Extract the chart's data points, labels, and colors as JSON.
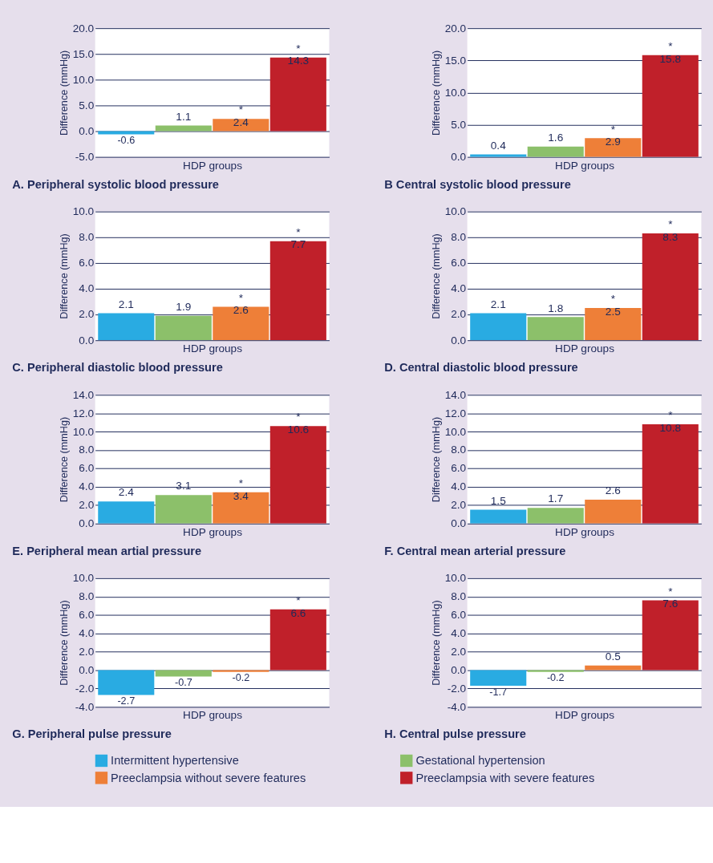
{
  "chart_data": [
    {
      "type": "bar",
      "title": "A. Peripheral systolic blood pressure",
      "xlabel": "HDP groups",
      "ylabel": "Difference (mmHg)",
      "categories": [
        null
      ],
      "legend": "bottom",
      "grid": "y",
      "ylim": [
        -5,
        20
      ],
      "yticks": [
        {
          "value": -5,
          "label": "-5.0"
        },
        {
          "value": 0,
          "label": "0.0"
        },
        {
          "value": 5,
          "label": "5.0"
        },
        {
          "value": 10,
          "label": "10.0"
        },
        {
          "value": 15,
          "label": "15.0"
        },
        {
          "value": 20,
          "label": "20.0"
        }
      ],
      "series": [
        {
          "name": "Intermittent hypertensive",
          "color": "#29abe2",
          "values": [
            -0.6
          ],
          "value_labels": [
            "-0.6"
          ]
        },
        {
          "name": "Gestational hypertension",
          "color": "#8cc06a",
          "values": [
            1.1
          ],
          "value_labels": [
            "1.1"
          ]
        },
        {
          "name": "Preeclampsia without severe features",
          "color": "#ee7f38",
          "values": [
            2.4
          ],
          "value_labels": [
            "*\n2.4"
          ]
        },
        {
          "name": "Preeclampsia with severe features",
          "color": "#c0202a",
          "values": [
            14.3
          ],
          "value_labels": [
            "*\n14.3"
          ]
        }
      ]
    },
    {
      "type": "bar",
      "title": "B  Central systolic blood pressure",
      "xlabel": "HDP groups",
      "ylabel": "Difference (mmHg)",
      "categories": [
        null
      ],
      "grid": "y",
      "ylim": [
        0,
        20
      ],
      "yticks": [
        {
          "value": 0,
          "label": "0.0"
        },
        {
          "value": 5,
          "label": "5.0"
        },
        {
          "value": 10,
          "label": "10.0"
        },
        {
          "value": 15,
          "label": "15.0"
        },
        {
          "value": 20,
          "label": "20.0"
        }
      ],
      "series": [
        {
          "name": "Intermittent hypertensive",
          "color": "#29abe2",
          "values": [
            0.4
          ],
          "value_labels": [
            "0.4"
          ]
        },
        {
          "name": "Gestational hypertension",
          "color": "#8cc06a",
          "values": [
            1.6
          ],
          "value_labels": [
            "1.6"
          ]
        },
        {
          "name": "Preeclampsia without severe features",
          "color": "#ee7f38",
          "values": [
            2.9
          ],
          "value_labels": [
            "*\n2.9"
          ]
        },
        {
          "name": "Preeclampsia with severe features",
          "color": "#c0202a",
          "values": [
            15.8
          ],
          "value_labels": [
            "*\n15.8"
          ]
        }
      ]
    },
    {
      "type": "bar",
      "title": "C. Peripheral diastolic blood pressure",
      "xlabel": "HDP groups",
      "ylabel": "Difference (mmHg)",
      "categories": [
        null
      ],
      "grid": "y",
      "ylim": [
        0,
        10
      ],
      "yticks": [
        {
          "value": 0,
          "label": "0.0"
        },
        {
          "value": 2,
          "label": "2.0"
        },
        {
          "value": 4,
          "label": "4.0"
        },
        {
          "value": 6,
          "label": "6.0"
        },
        {
          "value": 8,
          "label": "8.0"
        },
        {
          "value": 10,
          "label": "10.0"
        }
      ],
      "series": [
        {
          "name": "Intermittent hypertensive",
          "color": "#29abe2",
          "values": [
            2.1
          ],
          "value_labels": [
            "2.1"
          ]
        },
        {
          "name": "Gestational hypertension",
          "color": "#8cc06a",
          "values": [
            1.9
          ],
          "value_labels": [
            "1.9"
          ]
        },
        {
          "name": "Preeclampsia without severe features",
          "color": "#ee7f38",
          "values": [
            2.6
          ],
          "value_labels": [
            "*\n2.6"
          ]
        },
        {
          "name": "Preeclampsia with severe features",
          "color": "#c0202a",
          "values": [
            7.7
          ],
          "value_labels": [
            "*\n7.7"
          ]
        }
      ]
    },
    {
      "type": "bar",
      "title": "D. Central diastolic blood pressure",
      "xlabel": "HDP groups",
      "ylabel": "Difference (mmHg)",
      "categories": [
        null
      ],
      "grid": "y",
      "ylim": [
        0,
        10
      ],
      "yticks": [
        {
          "value": 0,
          "label": "0.0"
        },
        {
          "value": 2,
          "label": "2.0"
        },
        {
          "value": 4,
          "label": "4.0"
        },
        {
          "value": 6,
          "label": "6.0"
        },
        {
          "value": 8,
          "label": "8.0"
        },
        {
          "value": 10,
          "label": "10.0"
        }
      ],
      "series": [
        {
          "name": "Intermittent hypertensive",
          "color": "#29abe2",
          "values": [
            2.1
          ],
          "value_labels": [
            "2.1"
          ]
        },
        {
          "name": "Gestational hypertension",
          "color": "#8cc06a",
          "values": [
            1.8
          ],
          "value_labels": [
            "1.8"
          ]
        },
        {
          "name": "Preeclampsia without severe features",
          "color": "#ee7f38",
          "values": [
            2.5
          ],
          "value_labels": [
            "*\n2.5"
          ]
        },
        {
          "name": "Preeclampsia with severe features",
          "color": "#c0202a",
          "values": [
            8.3
          ],
          "value_labels": [
            "*\n8.3"
          ]
        }
      ]
    },
    {
      "type": "bar",
      "title": "E. Peripheral mean artial pressure",
      "xlabel": "HDP groups",
      "ylabel": "Difference (mmHg)",
      "categories": [
        null
      ],
      "grid": "y",
      "ylim": [
        0,
        14
      ],
      "yticks": [
        {
          "value": 0,
          "label": "0.0"
        },
        {
          "value": 2,
          "label": "2.0"
        },
        {
          "value": 4,
          "label": "4.0"
        },
        {
          "value": 6,
          "label": "6.0"
        },
        {
          "value": 8,
          "label": "8.0"
        },
        {
          "value": 10,
          "label": "10.0"
        },
        {
          "value": 12,
          "label": "12.0"
        },
        {
          "value": 14,
          "label": "14.0"
        }
      ],
      "series": [
        {
          "name": "Intermittent hypertensive",
          "color": "#29abe2",
          "values": [
            2.4
          ],
          "value_labels": [
            "2.4"
          ]
        },
        {
          "name": "Gestational hypertension",
          "color": "#8cc06a",
          "values": [
            3.1
          ],
          "value_labels": [
            "3.1"
          ]
        },
        {
          "name": "Preeclampsia without severe features",
          "color": "#ee7f38",
          "values": [
            3.4
          ],
          "value_labels": [
            "*\n3.4"
          ]
        },
        {
          "name": "Preeclampsia with severe features",
          "color": "#c0202a",
          "values": [
            10.6
          ],
          "value_labels": [
            "*\n10.6"
          ]
        }
      ]
    },
    {
      "type": "bar",
      "title": "F. Central mean arterial pressure",
      "xlabel": "HDP groups",
      "ylabel": "Difference (mmHg)",
      "categories": [
        null
      ],
      "grid": "y",
      "ylim": [
        0,
        14
      ],
      "yticks": [
        {
          "value": 0,
          "label": "0.0"
        },
        {
          "value": 2,
          "label": "2.0"
        },
        {
          "value": 4,
          "label": "4.0"
        },
        {
          "value": 6,
          "label": "6.0"
        },
        {
          "value": 8,
          "label": "8.0"
        },
        {
          "value": 10,
          "label": "10.0"
        },
        {
          "value": 12,
          "label": "12.0"
        },
        {
          "value": 14,
          "label": "14.0"
        }
      ],
      "series": [
        {
          "name": "Intermittent hypertensive",
          "color": "#29abe2",
          "values": [
            1.5
          ],
          "value_labels": [
            "1.5"
          ]
        },
        {
          "name": "Gestational hypertension",
          "color": "#8cc06a",
          "values": [
            1.7
          ],
          "value_labels": [
            "1.7"
          ]
        },
        {
          "name": "Preeclampsia without severe features",
          "color": "#ee7f38",
          "values": [
            2.6
          ],
          "value_labels": [
            "2.6"
          ]
        },
        {
          "name": "Preeclampsia with severe features",
          "color": "#c0202a",
          "values": [
            10.8
          ],
          "value_labels": [
            "*\n10.8"
          ]
        }
      ]
    },
    {
      "type": "bar",
      "title": "G. Peripheral pulse pressure",
      "xlabel": "HDP groups",
      "ylabel": "Difference (mmHg)",
      "categories": [
        null
      ],
      "grid": "y",
      "ylim": [
        -4,
        10
      ],
      "yticks": [
        {
          "value": -4,
          "label": "-4.0"
        },
        {
          "value": -2,
          "label": "-2.0"
        },
        {
          "value": 0,
          "label": "0.0"
        },
        {
          "value": 2,
          "label": "2.0"
        },
        {
          "value": 4,
          "label": "4.0"
        },
        {
          "value": 6,
          "label": "6.0"
        },
        {
          "value": 8,
          "label": "8.0"
        },
        {
          "value": 10,
          "label": "10.0"
        }
      ],
      "series": [
        {
          "name": "Intermittent hypertensive",
          "color": "#29abe2",
          "values": [
            -2.7
          ],
          "value_labels": [
            "-2.7"
          ]
        },
        {
          "name": "Gestational hypertension",
          "color": "#8cc06a",
          "values": [
            -0.7
          ],
          "value_labels": [
            "-0.7"
          ]
        },
        {
          "name": "Preeclampsia without severe features",
          "color": "#ee7f38",
          "values": [
            -0.2
          ],
          "value_labels": [
            "-0.2"
          ]
        },
        {
          "name": "Preeclampsia with severe features",
          "color": "#c0202a",
          "values": [
            6.6
          ],
          "value_labels": [
            "*\n6.6"
          ]
        }
      ]
    },
    {
      "type": "bar",
      "title": "H. Central pulse pressure",
      "xlabel": "HDP groups",
      "ylabel": "Difference (mmHg)",
      "categories": [
        null
      ],
      "grid": "y",
      "ylim": [
        -4,
        10
      ],
      "yticks": [
        {
          "value": -4,
          "label": "-4.0"
        },
        {
          "value": -2,
          "label": "-2.0"
        },
        {
          "value": 0,
          "label": "0.0"
        },
        {
          "value": 2,
          "label": "2.0"
        },
        {
          "value": 4,
          "label": "4.0"
        },
        {
          "value": 6,
          "label": "6.0"
        },
        {
          "value": 8,
          "label": "8.0"
        },
        {
          "value": 10,
          "label": "10.0"
        }
      ],
      "series": [
        {
          "name": "Intermittent hypertensive",
          "color": "#29abe2",
          "values": [
            -1.7
          ],
          "value_labels": [
            "-1.7"
          ]
        },
        {
          "name": "Gestational hypertension",
          "color": "#8cc06a",
          "values": [
            -0.2
          ],
          "value_labels": [
            "-0.2"
          ]
        },
        {
          "name": "Preeclampsia without severe features",
          "color": "#ee7f38",
          "values": [
            0.5
          ],
          "value_labels": [
            "0.5"
          ]
        },
        {
          "name": "Preeclampsia with severe features",
          "color": "#c0202a",
          "values": [
            7.6
          ],
          "value_labels": [
            "*\n7.6"
          ]
        }
      ]
    }
  ]
}
